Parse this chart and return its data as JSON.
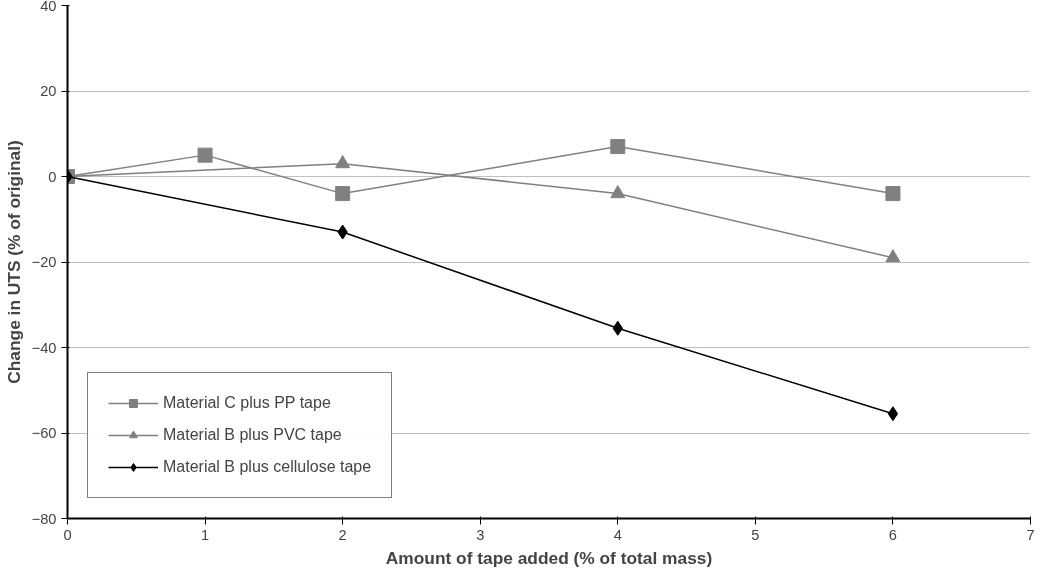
{
  "chart_data": {
    "type": "line",
    "xlabel": "Amount of tape added (% of total mass)",
    "ylabel": "Change in UTS (% of original)",
    "xlim": [
      0,
      7
    ],
    "xticks": [
      0,
      1,
      2,
      3,
      4,
      5,
      6,
      7
    ],
    "ylim": [
      -80,
      40
    ],
    "yticks": [
      -80,
      -60,
      -40,
      -20,
      0,
      20,
      40
    ],
    "grid": "y",
    "legend": "bottom left",
    "line_style": "solid",
    "series": [
      {
        "name": "Material C plus PP tape",
        "color": "#808080",
        "marker": "square",
        "x": [
          0,
          1,
          2,
          4,
          6
        ],
        "values": [
          0,
          5,
          -4,
          7,
          -4
        ]
      },
      {
        "name": "Material B plus PVC tape",
        "color": "#808080",
        "marker": "triangle",
        "x": [
          0,
          2,
          4,
          6
        ],
        "values": [
          0,
          3,
          -4,
          -19
        ]
      },
      {
        "name": "Material B plus cellulose tape",
        "color": "#000000",
        "marker": "diamond",
        "x": [
          0,
          2,
          4,
          6
        ],
        "values": [
          0,
          -13,
          -35.5,
          -55.5
        ]
      }
    ]
  }
}
